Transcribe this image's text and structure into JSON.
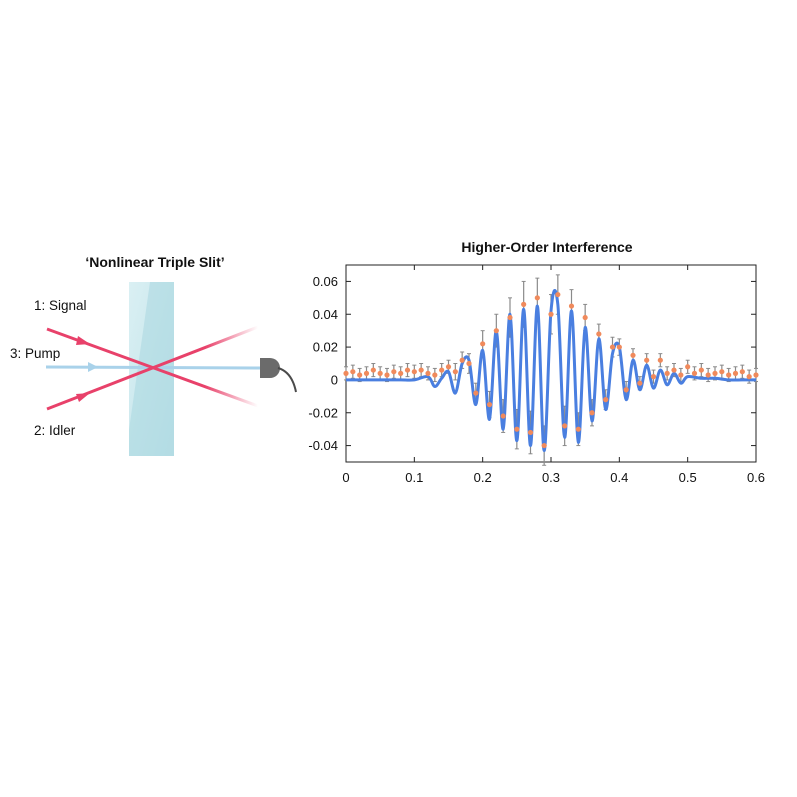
{
  "diagram": {
    "title": "‘Nonlinear Triple Slit’",
    "labels": {
      "signal": "1: Signal",
      "pump": "3: Pump",
      "idler": "2: Idler"
    },
    "colors": {
      "signal_idler": "#e8416a",
      "pump": "#a9d2ea",
      "crystal": "#c2e6ec",
      "detector": "#6b6b6b"
    },
    "icons": [
      "crystal-slab",
      "detector-icon"
    ]
  },
  "chart_data": {
    "type": "line",
    "title": "Higher-Order Interference",
    "xlabel": "",
    "ylabel": "",
    "xlim": [
      0,
      0.6
    ],
    "ylim": [
      -0.05,
      0.07
    ],
    "x_ticks": [
      0,
      0.1,
      0.2,
      0.3,
      0.4,
      0.5,
      0.6
    ],
    "x_tick_labels": [
      "0",
      "0.1",
      "0.2",
      "0.3",
      "0.4",
      "0.5",
      "0.6"
    ],
    "y_ticks": [
      0.06,
      0.04,
      0.02,
      0,
      -0.02,
      -0.04
    ],
    "y_tick_labels": [
      "0.06",
      "0.04",
      "0.02",
      "0",
      "-0.02",
      "-0.04"
    ],
    "grid": false,
    "series": [
      {
        "kind": "model-line",
        "color": "#4a7fe0",
        "x": [
          0,
          0.02,
          0.04,
          0.06,
          0.08,
          0.1,
          0.12,
          0.13,
          0.14,
          0.15,
          0.16,
          0.17,
          0.18,
          0.19,
          0.2,
          0.21,
          0.22,
          0.23,
          0.24,
          0.25,
          0.26,
          0.27,
          0.28,
          0.29,
          0.3,
          0.31,
          0.32,
          0.33,
          0.34,
          0.35,
          0.36,
          0.37,
          0.38,
          0.39,
          0.4,
          0.41,
          0.42,
          0.43,
          0.44,
          0.45,
          0.46,
          0.47,
          0.48,
          0.49,
          0.5,
          0.52,
          0.54,
          0.56,
          0.58,
          0.6
        ],
        "y": [
          0,
          0,
          0,
          0,
          0,
          0,
          0.002,
          -0.004,
          0.001,
          0.005,
          -0.008,
          0.01,
          0.012,
          -0.015,
          0.018,
          -0.024,
          0.03,
          -0.03,
          0.04,
          -0.037,
          0.043,
          -0.04,
          0.045,
          -0.043,
          0.042,
          0.046,
          -0.035,
          0.042,
          -0.038,
          0.032,
          -0.025,
          0.025,
          -0.018,
          0.016,
          0.02,
          -0.012,
          0.012,
          -0.006,
          0.009,
          -0.005,
          0.006,
          -0.003,
          0.004,
          -0.002,
          0.002,
          0.001,
          0.001,
          0,
          0,
          0
        ]
      },
      {
        "kind": "measured-points",
        "color": "#f08a5c",
        "error_color": "#8a8a8a",
        "x": [
          0,
          0.01,
          0.02,
          0.03,
          0.04,
          0.05,
          0.06,
          0.07,
          0.08,
          0.09,
          0.1,
          0.11,
          0.12,
          0.13,
          0.14,
          0.15,
          0.16,
          0.17,
          0.18,
          0.19,
          0.2,
          0.21,
          0.22,
          0.23,
          0.24,
          0.25,
          0.26,
          0.27,
          0.28,
          0.29,
          0.3,
          0.31,
          0.32,
          0.33,
          0.34,
          0.35,
          0.36,
          0.37,
          0.38,
          0.39,
          0.4,
          0.41,
          0.42,
          0.43,
          0.44,
          0.45,
          0.46,
          0.47,
          0.48,
          0.49,
          0.5,
          0.51,
          0.52,
          0.53,
          0.54,
          0.55,
          0.56,
          0.57,
          0.58,
          0.59,
          0.6
        ],
        "y": [
          0.004,
          0.005,
          0.003,
          0.004,
          0.006,
          0.004,
          0.003,
          0.005,
          0.004,
          0.006,
          0.005,
          0.006,
          0.004,
          0.003,
          0.006,
          0.008,
          0.005,
          0.012,
          0.01,
          -0.008,
          0.022,
          -0.015,
          0.03,
          -0.022,
          0.038,
          -0.03,
          0.046,
          -0.032,
          0.05,
          -0.04,
          0.04,
          0.052,
          -0.028,
          0.045,
          -0.03,
          0.038,
          -0.02,
          0.028,
          -0.012,
          0.02,
          0.02,
          -0.006,
          0.015,
          -0.002,
          0.012,
          0.002,
          0.012,
          0.004,
          0.006,
          0.003,
          0.008,
          0.004,
          0.006,
          0.003,
          0.004,
          0.005,
          0.003,
          0.004,
          0.005,
          0.002,
          0.003
        ],
        "error": [
          0.004,
          0.004,
          0.004,
          0.004,
          0.004,
          0.004,
          0.004,
          0.004,
          0.004,
          0.004,
          0.004,
          0.004,
          0.004,
          0.004,
          0.004,
          0.004,
          0.005,
          0.005,
          0.006,
          0.006,
          0.008,
          0.008,
          0.01,
          0.01,
          0.012,
          0.012,
          0.014,
          0.013,
          0.012,
          0.012,
          0.012,
          0.012,
          0.012,
          0.01,
          0.01,
          0.008,
          0.008,
          0.006,
          0.006,
          0.006,
          0.005,
          0.005,
          0.004,
          0.004,
          0.004,
          0.004,
          0.004,
          0.004,
          0.004,
          0.004,
          0.004,
          0.004,
          0.004,
          0.004,
          0.004,
          0.004,
          0.004,
          0.004,
          0.004,
          0.004,
          0.004
        ]
      }
    ]
  }
}
